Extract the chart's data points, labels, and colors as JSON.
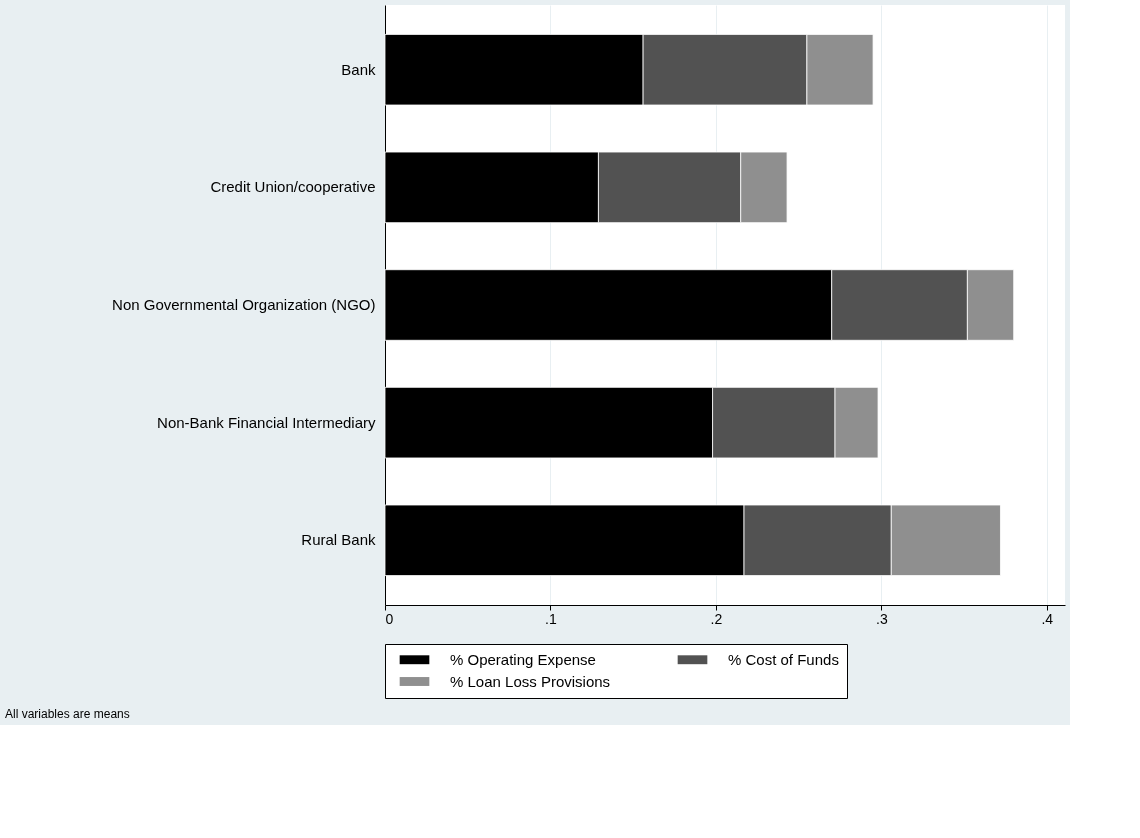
{
  "chart_data": {
    "type": "bar",
    "orientation": "horizontal",
    "stacked": true,
    "categories": [
      "Bank",
      "Credit Union/cooperative",
      "Non Governmental Organization (NGO)",
      "Non-Bank Financial Intermediary",
      "Rural Bank"
    ],
    "series": [
      {
        "name": "% Operating Expense",
        "color": "#000000",
        "values": [
          0.156,
          0.129,
          0.27,
          0.198,
          0.217
        ]
      },
      {
        "name": "% Cost of Funds",
        "color": "#525252",
        "values": [
          0.099,
          0.086,
          0.082,
          0.074,
          0.089
        ]
      },
      {
        "name": "% Loan Loss Provisions",
        "color": "#8f8f8f",
        "values": [
          0.04,
          0.028,
          0.028,
          0.026,
          0.066
        ]
      }
    ],
    "xlim": [
      0,
      0.411
    ],
    "xticks": [
      0,
      {
        "value": 0.1,
        "label": ".1"
      },
      {
        "value": 0.2,
        "label": ".2"
      },
      {
        "value": 0.3,
        "label": ".3"
      },
      {
        "value": 0.4,
        "label": ".4"
      }
    ],
    "grid": "x",
    "legend": "bottom",
    "annotations": [
      "All variables are means"
    ]
  }
}
